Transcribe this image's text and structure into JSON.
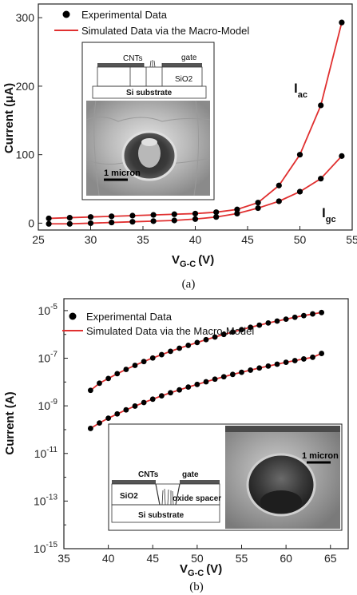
{
  "chart_data": [
    {
      "type": "line",
      "panel_label": "(a)",
      "xlabel": "V",
      "xlabel_sub": "G-C",
      "xlabel_unit": "(V)",
      "ylabel": "Current (μA)",
      "xlim": [
        25,
        55
      ],
      "ylim": [
        -10,
        320
      ],
      "x_ticks": [
        25,
        30,
        35,
        40,
        45,
        50,
        55
      ],
      "y_ticks": [
        0,
        100,
        200,
        300
      ],
      "legend": [
        "Experimental Data",
        "Simulated Data via the Macro-Model"
      ],
      "curve_labels": [
        {
          "main": "I",
          "sub": "ac"
        },
        {
          "main": "I",
          "sub": "gc"
        }
      ],
      "x": [
        26,
        28,
        30,
        32,
        34,
        36,
        38,
        40,
        42,
        44,
        46,
        48,
        50,
        52,
        54
      ],
      "series": [
        {
          "marker_color": "#000000",
          "line_color": "#e03030",
          "values": [
            7,
            8,
            9,
            10,
            11,
            12,
            13,
            14,
            16,
            20,
            30,
            55,
            100,
            172,
            293
          ]
        },
        {
          "marker_color": "#000000",
          "line_color": "#e03030",
          "values": [
            -1,
            -1,
            0,
            1,
            2,
            3,
            4,
            6,
            9,
            14,
            22,
            32,
            46,
            65,
            98
          ]
        }
      ],
      "inset": {
        "labels": [
          "CNTs",
          "gate",
          "SiO2",
          "Si substrate",
          "1 micron"
        ]
      }
    },
    {
      "type": "line",
      "panel_label": "(b)",
      "xlabel": "V",
      "xlabel_sub": "G-C",
      "xlabel_unit": "(V)",
      "ylabel": "Current (A)",
      "y_scale": "log",
      "xlim": [
        35,
        67
      ],
      "ylim_exponent": [
        -15,
        -4.5
      ],
      "x_ticks": [
        35,
        40,
        45,
        50,
        55,
        60,
        65
      ],
      "y_tick_exponents": [
        -5,
        -7,
        -9,
        -11,
        -13,
        -15
      ],
      "legend": [
        "Experimental Data",
        "Simulated Data via the Macro-Model"
      ],
      "x": [
        38,
        39,
        40,
        41,
        42,
        43,
        44,
        45,
        46,
        47,
        48,
        49,
        50,
        51,
        52,
        53,
        54,
        55,
        56,
        57,
        58,
        59,
        60,
        61,
        62,
        63,
        64
      ],
      "series": [
        {
          "marker_color": "#000000",
          "line_color": "#e03030",
          "log10_values": [
            -8.35,
            -8.05,
            -7.85,
            -7.65,
            -7.47,
            -7.3,
            -7.14,
            -6.99,
            -6.85,
            -6.71,
            -6.58,
            -6.46,
            -6.34,
            -6.22,
            -6.11,
            -6.0,
            -5.9,
            -5.8,
            -5.7,
            -5.61,
            -5.52,
            -5.44,
            -5.36,
            -5.28,
            -5.21,
            -5.14,
            -5.08
          ]
        },
        {
          "marker_color": "#000000",
          "line_color": "#e03030",
          "log10_values": [
            -9.95,
            -9.72,
            -9.52,
            -9.34,
            -9.17,
            -9.01,
            -8.86,
            -8.72,
            -8.58,
            -8.45,
            -8.33,
            -8.21,
            -8.1,
            -7.99,
            -7.88,
            -7.78,
            -7.68,
            -7.59,
            -7.5,
            -7.41,
            -7.33,
            -7.25,
            -7.17,
            -7.1,
            -7.03,
            -6.96,
            -6.8
          ]
        }
      ],
      "inset": {
        "labels": [
          "CNTs",
          "gate",
          "SiO2",
          "oxide spacer",
          "Si substrate",
          "1 micron"
        ]
      }
    }
  ]
}
